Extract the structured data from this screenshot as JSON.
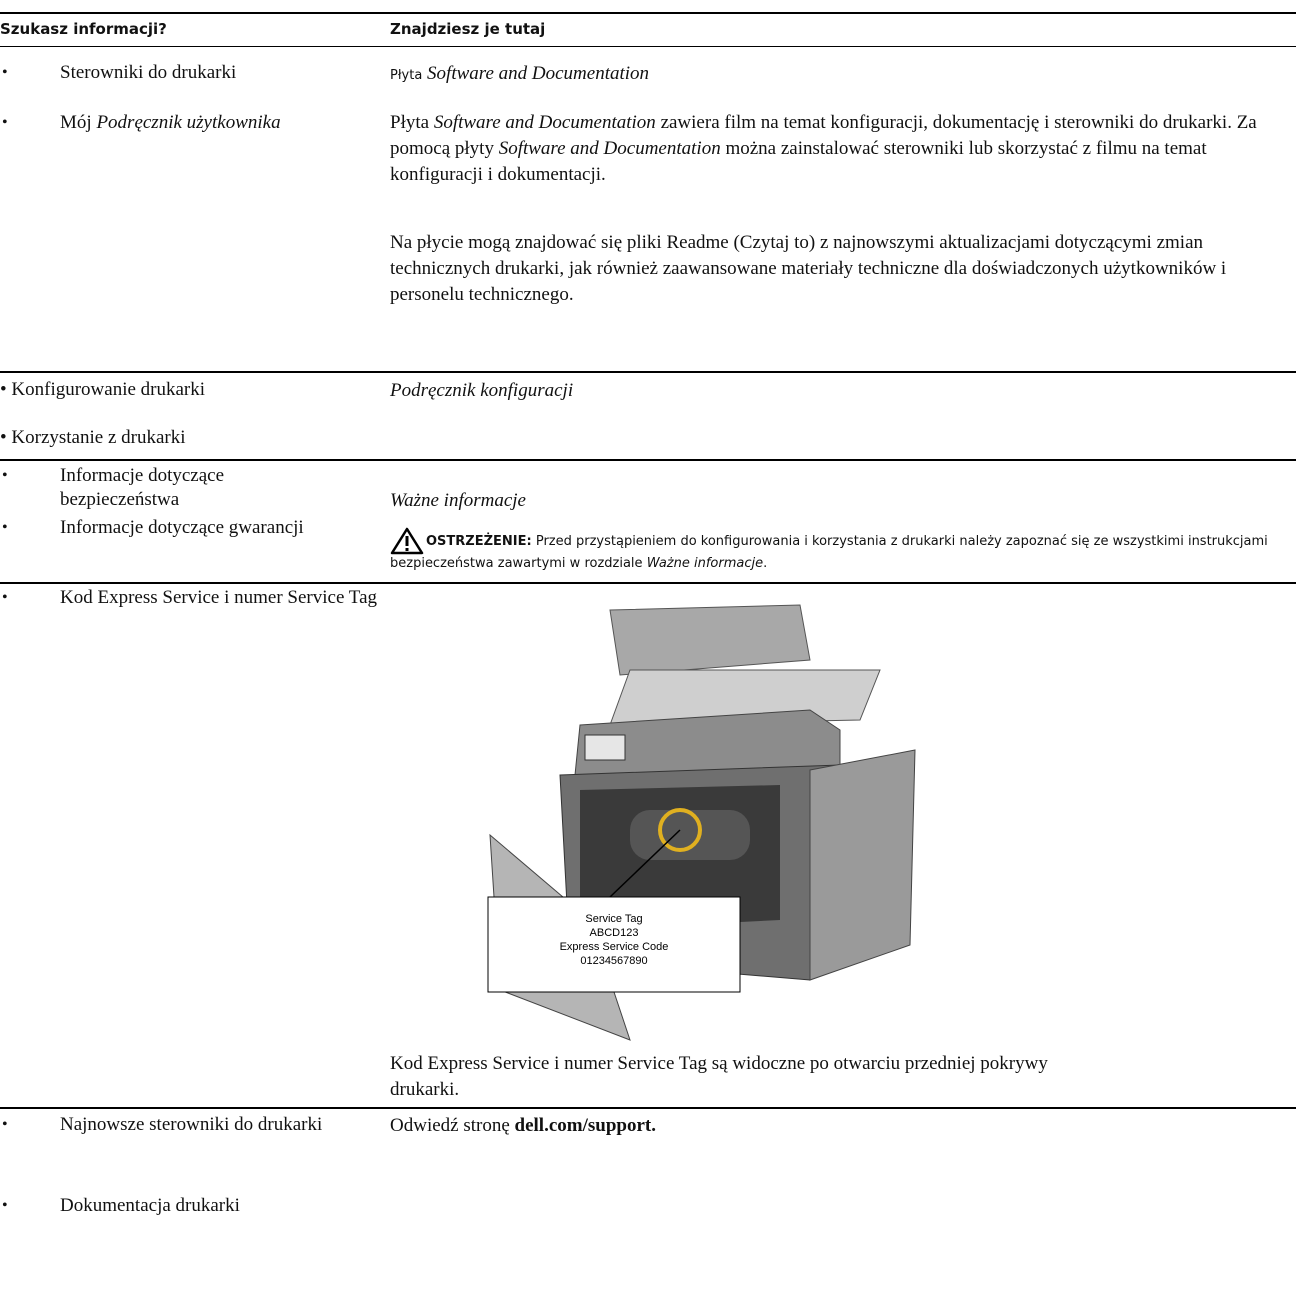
{
  "header": {
    "col1": "Szukasz informacji?",
    "col2": "Znajdziesz je tutaj"
  },
  "rows": [
    {
      "topics": [
        [
          "Sterowniki do drukarki"
        ],
        [
          "Mój ",
          "Podręcznik użytkownika"
        ]
      ],
      "source": [
        "Płyta",
        "Software and Documentation"
      ],
      "paragraphs": [
        [
          "Płyta ",
          "Software and Documentation",
          " zawiera film na temat konfiguracji, dokumentację i sterowniki do drukarki. Za pomocą płyty ",
          "Software and Documentation",
          " można zainstalować sterowniki lub skorzystać z filmu na temat konfiguracji i dokumentacji."
        ],
        [
          "Na płycie mogą znajdować się pliki Readme (Czytaj to) z najnowszymi aktualizacjami dotyczącymi zmian technicznych drukarki, jak również zaawansowane materiały techniczne dla doświadczonych użytkowników i personelu technicznego."
        ]
      ]
    },
    {
      "topics": [
        [
          "Konfigurowanie drukarki"
        ],
        [
          "Korzystanie z drukarki"
        ]
      ],
      "source": [
        "Podręcznik konfiguracji"
      ]
    },
    {
      "topics": [
        [
          "Informacje dotyczące bezpieczeństwa"
        ],
        [
          "Informacje dotyczące gwarancji"
        ]
      ],
      "source": [
        "Ważne informacje"
      ],
      "warning": [
        "OSTRZEŻENIE:",
        " Przed przystąpieniem do konfigurowania i korzystania z drukarki należy zapoznać się ze wszystkimi instrukcjami bezpieczeństwa zawartymi w rozdziale ",
        "Ważne informacje",
        "."
      ]
    },
    {
      "topics": [
        [
          "Kod Express Service i numer Service Tag"
        ]
      ],
      "label": [
        "Service Tag",
        "ABCD123",
        "Express Service Code",
        "01234567890"
      ],
      "caption": [
        "Kod Express Service i numer Service Tag są widoczne po otwarciu przedniej pokrywy drukarki."
      ]
    },
    {
      "topics": [
        [
          "Najnowsze sterowniki do drukarki"
        ],
        [
          "Dokumentacja drukarki"
        ]
      ],
      "source": [
        "Odwiedź stronę ",
        "dell.com/support."
      ]
    }
  ]
}
